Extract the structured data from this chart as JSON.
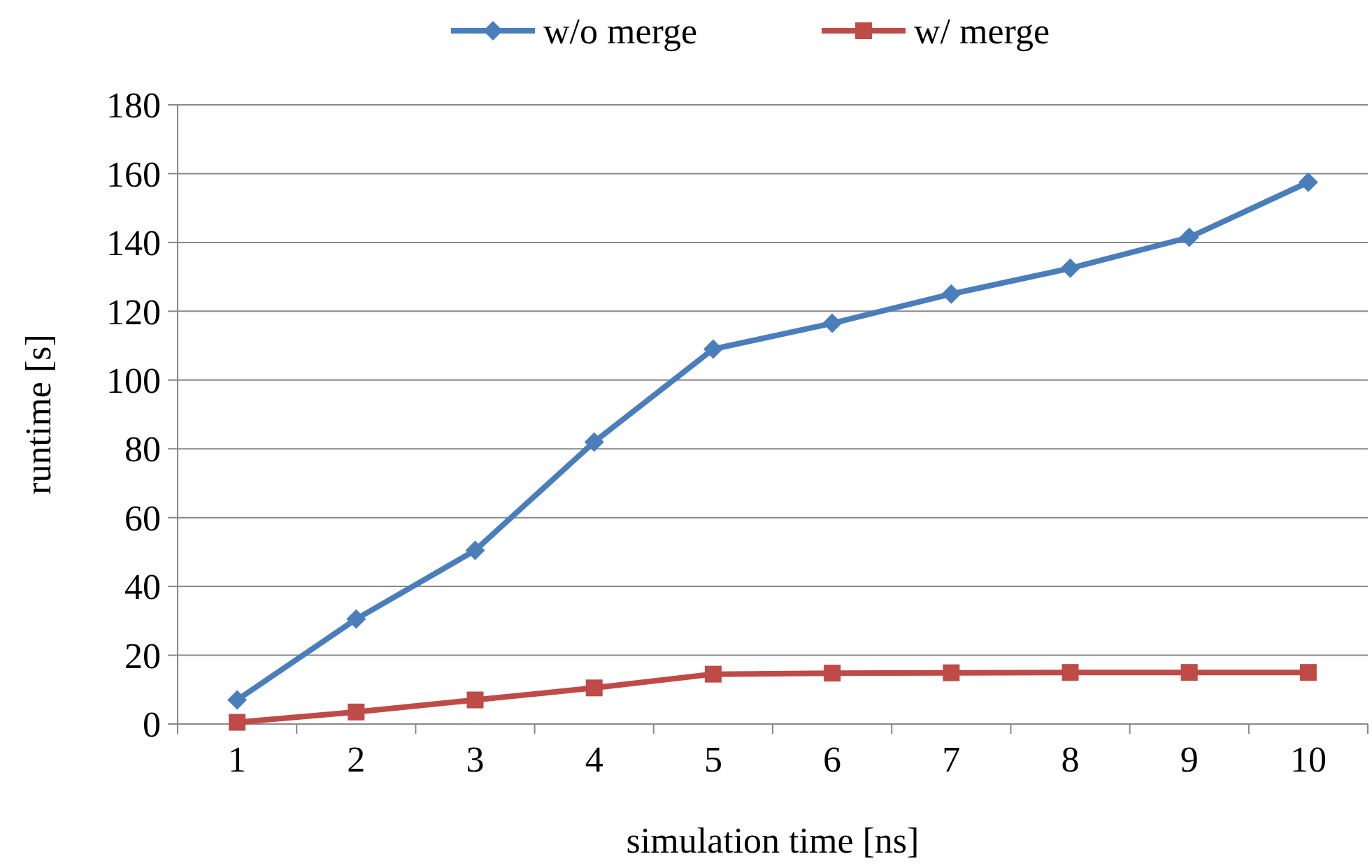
{
  "chart_data": {
    "type": "line",
    "xlabel": "simulation time [ns]",
    "ylabel": "runtime [s]",
    "categories": [
      "1",
      "2",
      "3",
      "4",
      "5",
      "6",
      "7",
      "8",
      "9",
      "10"
    ],
    "series": [
      {
        "name": "w/o merge",
        "color": "#4a7ebb",
        "marker": "diamond",
        "values": [
          7,
          30.5,
          50.5,
          82,
          109,
          116.5,
          125,
          132.5,
          141.5,
          157.5
        ]
      },
      {
        "name": "w/ merge",
        "color": "#be4b48",
        "marker": "square",
        "values": [
          0.5,
          3.5,
          7,
          10.5,
          14.5,
          14.8,
          14.9,
          15,
          15,
          15
        ]
      }
    ],
    "ylim": [
      0,
      180
    ],
    "yticks": [
      0,
      20,
      40,
      60,
      80,
      100,
      120,
      140,
      160,
      180
    ],
    "grid": "y",
    "legend": "top",
    "line_style": "solid"
  }
}
